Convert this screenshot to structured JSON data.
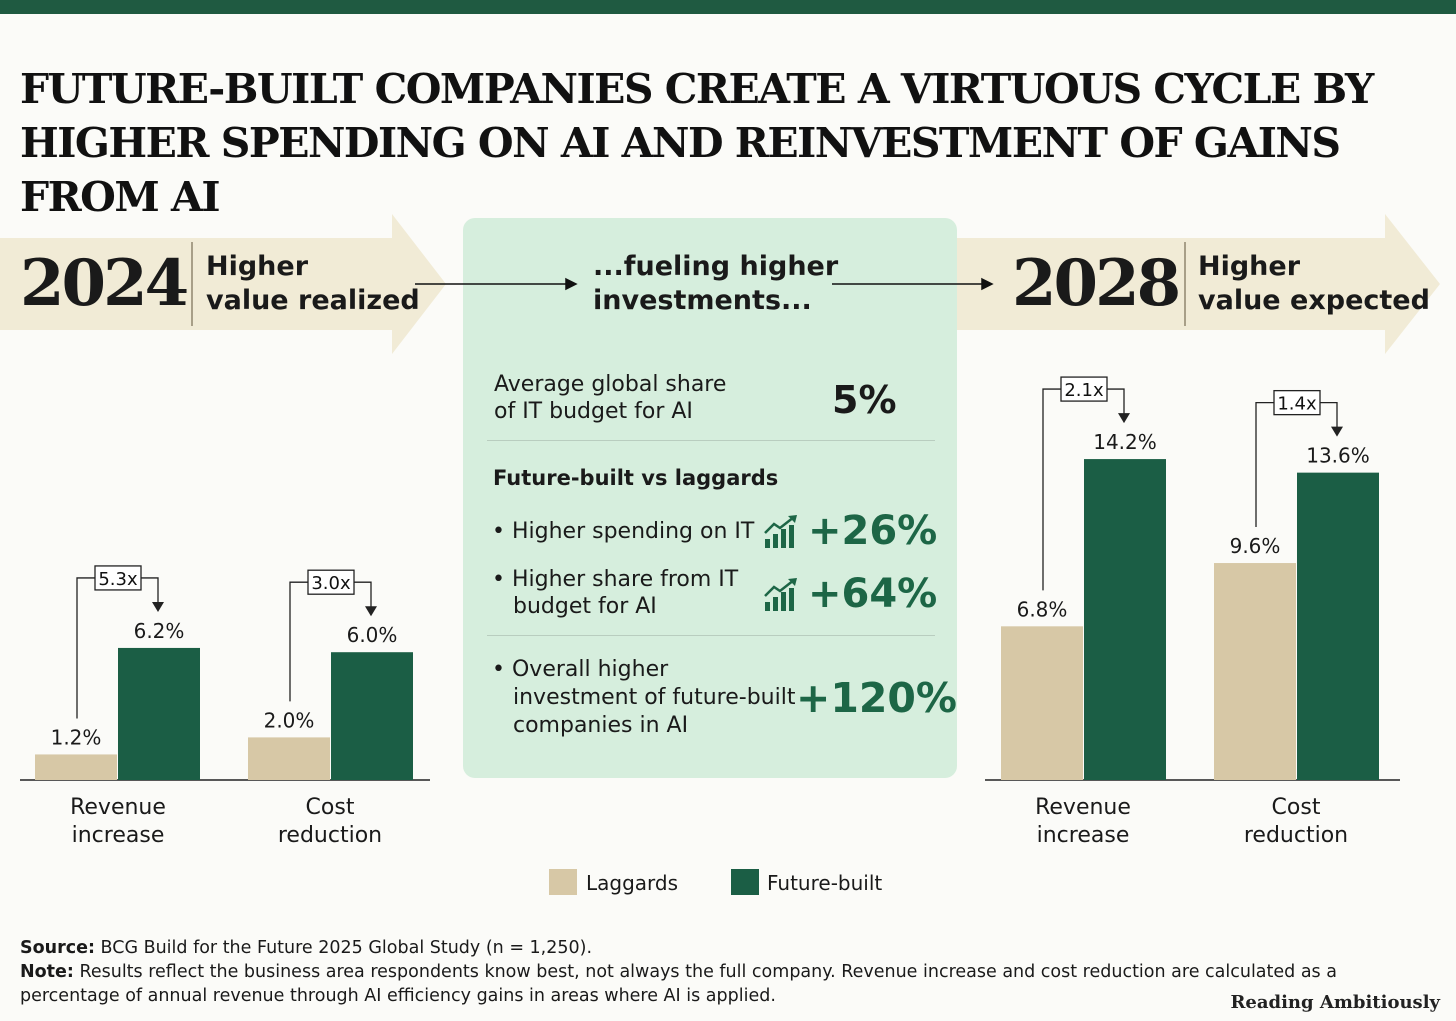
{
  "title": "FUTURE-BUILT COMPANIES CREATE A VIRTUOUS CYCLE BY HIGHER SPENDING ON AI AND REINVESTMENT OF GAINS FROM AI",
  "left_header": {
    "year": "2024",
    "line1": "Higher",
    "line2": "value realized"
  },
  "center_header": {
    "line1": "...fueling higher",
    "line2": "investments..."
  },
  "right_header": {
    "year": "2028",
    "line1": "Higher",
    "line2": "value expected"
  },
  "panel": {
    "share_label_1": "Average global share",
    "share_label_2": "of IT budget for AI",
    "share_value": "5%",
    "subheading": "Future-built vs laggards",
    "items": [
      {
        "text1": "Higher spending on IT",
        "text2": "",
        "text3": "",
        "value": "+26%",
        "icon": "growth-chart-icon"
      },
      {
        "text1": "Higher share from IT",
        "text2": "budget for AI",
        "text3": "",
        "value": "+64%",
        "icon": "growth-chart-icon"
      },
      {
        "text1": "Overall higher",
        "text2": "investment of future-built",
        "text3": "companies in AI",
        "value": "+120%",
        "icon": ""
      }
    ]
  },
  "colors": {
    "laggards": "#d7c8a6",
    "future_built": "#1b5e45",
    "accent": "#1f5a41"
  },
  "chart_data": [
    {
      "type": "bar",
      "title": "2024 Higher value realized",
      "categories": [
        "Revenue increase",
        "Cost reduction"
      ],
      "category_lines": [
        [
          "Revenue",
          "increase"
        ],
        [
          "Cost",
          "reduction"
        ]
      ],
      "series": [
        {
          "name": "Laggards",
          "values": [
            1.2,
            2.0
          ],
          "labels": [
            "1.2%",
            "2.0%"
          ]
        },
        {
          "name": "Future-built",
          "values": [
            6.2,
            6.0
          ],
          "labels": [
            "6.2%",
            "6.0%"
          ]
        }
      ],
      "multipliers": [
        "5.3x",
        "3.0x"
      ],
      "unit": "%"
    },
    {
      "type": "bar",
      "title": "2028 Higher value expected",
      "categories": [
        "Revenue increase",
        "Cost reduction"
      ],
      "category_lines": [
        [
          "Revenue",
          "increase"
        ],
        [
          "Cost",
          "reduction"
        ]
      ],
      "series": [
        {
          "name": "Laggards",
          "values": [
            6.8,
            9.6
          ],
          "labels": [
            "6.8%",
            "9.6%"
          ]
        },
        {
          "name": "Future-built",
          "values": [
            14.2,
            13.6
          ],
          "labels": [
            "14.2%",
            "13.6%"
          ]
        }
      ],
      "multipliers": [
        "2.1x",
        "1.4x"
      ],
      "unit": "%"
    }
  ],
  "legend": {
    "laggards": "Laggards",
    "future_built": "Future-built"
  },
  "footer": {
    "source_label": "Source:",
    "source_text": " BCG Build for the Future 2025 Global Study (n = 1,250).",
    "note_label": "Note:",
    "note_text": " Results reflect the business area respondents know best, not always the full company. Revenue increase and cost reduction are calculated as a",
    "note_text_2": "percentage of annual revenue through AI efficiency gains in areas where AI is applied.",
    "brand": "Reading Ambitiously"
  }
}
